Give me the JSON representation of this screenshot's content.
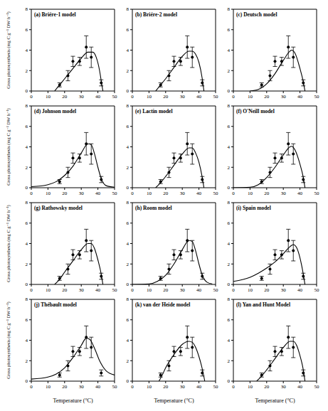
{
  "chart_data": [
    {
      "type": "scatter",
      "title": "(a) Briére-1 model",
      "ylabel": "Gross photosynthesis (mg C g⁻¹ DW h⁻¹)",
      "xlim": [
        0,
        50
      ],
      "xticks": [
        0,
        10,
        20,
        30,
        40,
        50
      ],
      "ylim": [
        0,
        8
      ],
      "yticks": [
        0,
        2,
        4,
        6,
        8
      ],
      "series": [
        {
          "type": "scatter",
          "marker": "circle",
          "color": "#000000",
          "x": [
            17,
            22,
            25,
            29,
            33,
            36,
            42
          ],
          "values": [
            0.6,
            1.5,
            2.9,
            2.9,
            4.3,
            3.3,
            0.8
          ],
          "error": [
            0.2,
            0.5,
            0.5,
            0.4,
            1.1,
            1.0,
            0.3
          ]
        },
        {
          "type": "line",
          "line_style": "solid",
          "color": "#000000",
          "x": [
            14,
            17,
            20,
            25,
            30,
            34,
            37,
            39,
            41,
            42,
            43
          ],
          "values": [
            0,
            0.6,
            1.2,
            2.2,
            3.2,
            3.8,
            3.8,
            3.3,
            2.0,
            1.0,
            0
          ]
        }
      ]
    },
    {
      "type": "scatter",
      "title": "(b) Briére-2 model",
      "xlim": [
        0,
        50
      ],
      "xticks": [
        0,
        10,
        20,
        30,
        40,
        50
      ],
      "ylim": [
        0,
        8
      ],
      "yticks": [
        0,
        2,
        4,
        6,
        8
      ],
      "series": [
        {
          "type": "scatter",
          "marker": "circle",
          "color": "#000000",
          "x": [
            17,
            22,
            25,
            29,
            33,
            36,
            42
          ],
          "values": [
            0.6,
            1.5,
            2.9,
            2.9,
            4.3,
            3.3,
            0.8
          ],
          "error": [
            0.2,
            0.5,
            0.5,
            0.4,
            1.1,
            1.0,
            0.3
          ]
        },
        {
          "type": "line",
          "line_style": "solid",
          "color": "#000000",
          "x": [
            14,
            17,
            20,
            25,
            30,
            34,
            36,
            38,
            40,
            42,
            43
          ],
          "values": [
            0,
            0.6,
            1.2,
            2.3,
            3.4,
            3.9,
            3.9,
            3.6,
            2.8,
            1.2,
            0
          ]
        }
      ]
    },
    {
      "type": "scatter",
      "title": "(c) Deutsch model",
      "xlim": [
        0,
        50
      ],
      "xticks": [
        0,
        10,
        20,
        30,
        40,
        50
      ],
      "ylim": [
        0,
        8
      ],
      "yticks": [
        0,
        2,
        4,
        6,
        8
      ],
      "series": [
        {
          "type": "scatter",
          "marker": "circle",
          "color": "#000000",
          "x": [
            17,
            22,
            25,
            29,
            33,
            36,
            42
          ],
          "values": [
            0.6,
            1.5,
            2.9,
            2.9,
            4.3,
            3.3,
            0.8
          ],
          "error": [
            0.2,
            0.5,
            0.5,
            0.4,
            1.1,
            1.0,
            0.3
          ]
        },
        {
          "type": "line",
          "line_style": "solid",
          "color": "#000000",
          "x": [
            10,
            15,
            20,
            25,
            30,
            34,
            35,
            37,
            40,
            42,
            43
          ],
          "values": [
            0,
            0.15,
            0.7,
            1.7,
            3.0,
            3.9,
            4.0,
            3.7,
            2.2,
            0.9,
            0
          ]
        }
      ]
    },
    {
      "type": "scatter",
      "title": "(d) Johnson model",
      "ylabel": "Gross photosynthesis (mg C g⁻¹ DW h⁻¹)",
      "xlim": [
        0,
        50
      ],
      "xticks": [
        0,
        10,
        20,
        30,
        40,
        50
      ],
      "ylim": [
        0,
        8
      ],
      "yticks": [
        0,
        2,
        4,
        6,
        8
      ],
      "series": [
        {
          "type": "scatter",
          "marker": "circle",
          "color": "#000000",
          "x": [
            17,
            22,
            25,
            29,
            33,
            36,
            42
          ],
          "values": [
            0.6,
            1.5,
            2.9,
            2.9,
            4.3,
            3.3,
            0.8
          ],
          "error": [
            0.2,
            0.5,
            0.5,
            0.4,
            1.1,
            1.0,
            0.3
          ]
        },
        {
          "type": "line",
          "line_style": "solid",
          "color": "#000000",
          "x": [
            0,
            10,
            15,
            20,
            25,
            30,
            34,
            36,
            38,
            40,
            42,
            45,
            50
          ],
          "values": [
            0.1,
            0.3,
            0.6,
            1.2,
            2.1,
            3.4,
            4.3,
            4.2,
            3.3,
            2.0,
            0.9,
            0.2,
            0.05
          ]
        }
      ]
    },
    {
      "type": "scatter",
      "title": "(e) Lactin model",
      "xlim": [
        0,
        50
      ],
      "xticks": [
        0,
        10,
        20,
        30,
        40,
        50
      ],
      "ylim": [
        0,
        8
      ],
      "yticks": [
        0,
        2,
        4,
        6,
        8
      ],
      "series": [
        {
          "type": "scatter",
          "marker": "circle",
          "color": "#000000",
          "x": [
            17,
            22,
            25,
            29,
            33,
            36,
            42
          ],
          "values": [
            0.6,
            1.5,
            2.9,
            2.9,
            4.3,
            3.3,
            0.8
          ],
          "error": [
            0.2,
            0.5,
            0.5,
            0.4,
            1.1,
            1.0,
            0.3
          ]
        },
        {
          "type": "line",
          "line_style": "solid",
          "color": "#000000",
          "x": [
            14,
            17,
            20,
            25,
            30,
            34,
            36,
            38,
            40,
            42,
            43
          ],
          "values": [
            0,
            0.5,
            1.1,
            2.2,
            3.3,
            3.9,
            3.9,
            3.4,
            2.5,
            1.0,
            0
          ]
        }
      ]
    },
    {
      "type": "scatter",
      "title": "(f) O'Neill model",
      "xlim": [
        0,
        50
      ],
      "xticks": [
        0,
        10,
        20,
        30,
        40,
        50
      ],
      "ylim": [
        0,
        8
      ],
      "yticks": [
        0,
        2,
        4,
        6,
        8
      ],
      "series": [
        {
          "type": "scatter",
          "marker": "circle",
          "color": "#000000",
          "x": [
            17,
            22,
            25,
            29,
            33,
            36,
            42
          ],
          "values": [
            0.6,
            1.5,
            2.9,
            2.9,
            4.3,
            3.3,
            0.8
          ],
          "error": [
            0.2,
            0.5,
            0.5,
            0.4,
            1.1,
            1.0,
            0.3
          ]
        },
        {
          "type": "line",
          "line_style": "solid",
          "color": "#000000",
          "x": [
            0,
            10,
            15,
            20,
            25,
            30,
            34,
            35,
            37,
            40,
            42,
            43
          ],
          "values": [
            0,
            0.05,
            0.3,
            1.0,
            2.0,
            3.2,
            4.0,
            4.05,
            3.7,
            2.3,
            1.0,
            0
          ]
        }
      ]
    },
    {
      "type": "scatter",
      "title": "(g) Rathowsky model",
      "ylabel": "Gross photosynthesis (mg C g⁻¹ DW h⁻¹)",
      "xlim": [
        0,
        50
      ],
      "xticks": [
        0,
        10,
        20,
        30,
        40,
        50
      ],
      "ylim": [
        0,
        8
      ],
      "yticks": [
        0,
        2,
        4,
        6,
        8
      ],
      "series": [
        {
          "type": "scatter",
          "marker": "circle",
          "color": "#000000",
          "x": [
            17,
            22,
            25,
            29,
            33,
            36,
            42
          ],
          "values": [
            0.6,
            1.5,
            2.9,
            2.9,
            4.3,
            3.3,
            0.8
          ],
          "error": [
            0.2,
            0.5,
            0.5,
            0.4,
            1.1,
            1.0,
            0.3
          ]
        },
        {
          "type": "line",
          "line_style": "solid",
          "color": "#000000",
          "x": [
            14,
            17,
            20,
            25,
            30,
            34,
            36,
            38,
            40,
            42,
            43
          ],
          "values": [
            0,
            0.5,
            1.2,
            2.3,
            3.4,
            4.0,
            4.0,
            3.5,
            2.4,
            1.0,
            0
          ]
        }
      ]
    },
    {
      "type": "scatter",
      "title": "(h) Room model",
      "xlim": [
        0,
        50
      ],
      "xticks": [
        0,
        10,
        20,
        30,
        40,
        50
      ],
      "ylim": [
        0,
        8
      ],
      "yticks": [
        0,
        2,
        4,
        6,
        8
      ],
      "series": [
        {
          "type": "scatter",
          "marker": "circle",
          "color": "#000000",
          "x": [
            17,
            22,
            25,
            29,
            33,
            36,
            42
          ],
          "values": [
            0.6,
            1.5,
            2.9,
            2.9,
            4.3,
            3.3,
            0.8
          ],
          "error": [
            0.2,
            0.5,
            0.5,
            0.4,
            1.1,
            1.0,
            0.3
          ]
        },
        {
          "type": "line",
          "line_style": "solid",
          "color": "#000000",
          "x": [
            0,
            10,
            15,
            20,
            25,
            30,
            34,
            36,
            38,
            40,
            42,
            45,
            48
          ],
          "values": [
            0,
            0.05,
            0.3,
            0.9,
            2.0,
            3.4,
            4.3,
            4.2,
            3.3,
            2.0,
            0.9,
            0.2,
            0.05
          ]
        }
      ]
    },
    {
      "type": "scatter",
      "title": "(i) Spain model",
      "xlim": [
        0,
        50
      ],
      "xticks": [
        0,
        10,
        20,
        30,
        40,
        50
      ],
      "ylim": [
        0,
        8
      ],
      "yticks": [
        0,
        2,
        4,
        6,
        8
      ],
      "series": [
        {
          "type": "scatter",
          "marker": "circle",
          "color": "#000000",
          "x": [
            17,
            22,
            25,
            29,
            33,
            36,
            42
          ],
          "values": [
            0.6,
            1.5,
            2.9,
            2.9,
            4.3,
            3.3,
            0.8
          ],
          "error": [
            0.2,
            0.5,
            0.5,
            0.4,
            1.1,
            1.0,
            0.3
          ]
        },
        {
          "type": "line",
          "line_style": "solid",
          "color": "#000000",
          "x": [
            0,
            10,
            15,
            20,
            25,
            30,
            34,
            36,
            38,
            40,
            42,
            43
          ],
          "values": [
            0.3,
            0.7,
            1.1,
            1.6,
            2.2,
            3.0,
            3.7,
            3.9,
            3.6,
            2.6,
            1.0,
            0
          ]
        }
      ]
    },
    {
      "type": "scatter",
      "title": "(j) Thébault model",
      "ylabel": "Gross photosynthesis (mg C g⁻¹ DW h⁻¹)",
      "xlabel": "Temperature (°C)",
      "xlim": [
        0,
        50
      ],
      "xticks": [
        0,
        10,
        20,
        30,
        40,
        50
      ],
      "ylim": [
        0,
        8
      ],
      "yticks": [
        0,
        2,
        4,
        6,
        8
      ],
      "series": [
        {
          "type": "scatter",
          "marker": "circle",
          "color": "#000000",
          "x": [
            17,
            22,
            25,
            29,
            33,
            36,
            42
          ],
          "values": [
            0.6,
            1.5,
            2.9,
            2.9,
            4.3,
            3.3,
            0.8
          ],
          "error": [
            0.2,
            0.5,
            0.5,
            0.4,
            1.1,
            1.0,
            0.3
          ]
        },
        {
          "type": "line",
          "line_style": "solid",
          "color": "#000000",
          "x": [
            0,
            10,
            15,
            20,
            25,
            30,
            33,
            35,
            38,
            41,
            45,
            50
          ],
          "values": [
            0.2,
            0.4,
            0.7,
            1.3,
            2.3,
            3.5,
            4.2,
            4.1,
            3.2,
            2.0,
            1.0,
            0.6
          ]
        }
      ]
    },
    {
      "type": "scatter",
      "title": "(k) van der Heide model",
      "xlabel": "Temperature (°C)",
      "xlim": [
        0,
        50
      ],
      "xticks": [
        0,
        10,
        20,
        30,
        40,
        50
      ],
      "ylim": [
        0,
        8
      ],
      "yticks": [
        0,
        2,
        4,
        6,
        8
      ],
      "series": [
        {
          "type": "scatter",
          "marker": "circle",
          "color": "#000000",
          "x": [
            17,
            22,
            25,
            29,
            33,
            36,
            42
          ],
          "values": [
            0.6,
            1.5,
            2.9,
            2.9,
            4.3,
            3.3,
            0.8
          ],
          "error": [
            0.2,
            0.5,
            0.5,
            0.4,
            1.1,
            1.0,
            0.3
          ]
        },
        {
          "type": "line",
          "line_style": "solid",
          "color": "#000000",
          "x": [
            16,
            18,
            20,
            25,
            30,
            34,
            36,
            38,
            40,
            42,
            43.5
          ],
          "values": [
            0,
            0.6,
            1.3,
            2.6,
            3.6,
            3.9,
            3.8,
            3.3,
            2.4,
            1.2,
            0
          ]
        }
      ]
    },
    {
      "type": "scatter",
      "title": "(l) Yan and Hunt Model",
      "xlabel": "Temperature (°C)",
      "xlim": [
        0,
        50
      ],
      "xticks": [
        0,
        10,
        20,
        30,
        40,
        50
      ],
      "ylim": [
        0,
        8
      ],
      "yticks": [
        0,
        2,
        4,
        6,
        8
      ],
      "series": [
        {
          "type": "scatter",
          "marker": "circle",
          "color": "#000000",
          "x": [
            17,
            22,
            25,
            29,
            33,
            36,
            42
          ],
          "values": [
            0.6,
            1.5,
            2.9,
            2.9,
            4.3,
            3.3,
            0.8
          ],
          "error": [
            0.2,
            0.5,
            0.5,
            0.4,
            1.1,
            1.0,
            0.3
          ]
        },
        {
          "type": "line",
          "line_style": "solid",
          "color": "#000000",
          "x": [
            14,
            17,
            20,
            25,
            30,
            34,
            36,
            38,
            40,
            42,
            43
          ],
          "values": [
            0,
            0.5,
            1.1,
            2.2,
            3.3,
            3.9,
            3.9,
            3.5,
            2.5,
            1.1,
            0
          ]
        }
      ]
    }
  ]
}
